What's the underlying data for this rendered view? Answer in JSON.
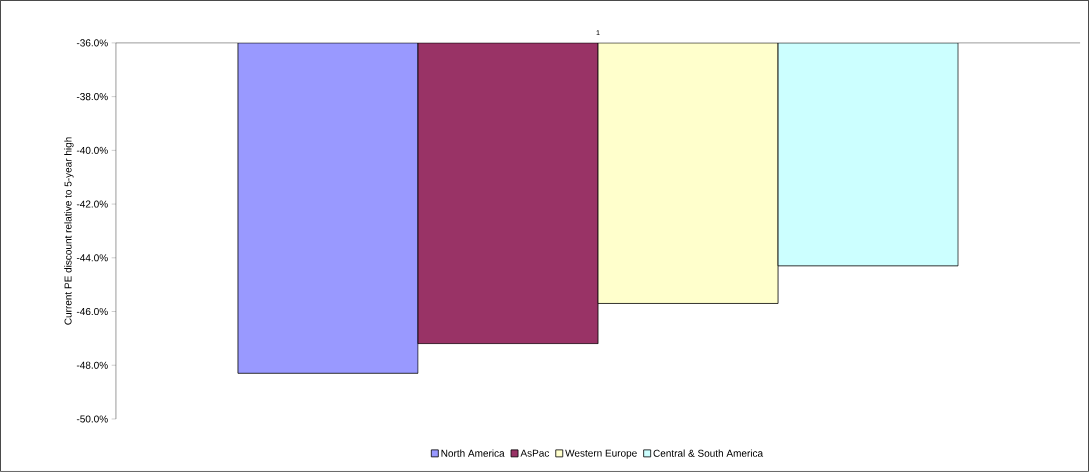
{
  "chart_data": {
    "type": "bar",
    "ylabel": "Current PE discount relative to 5-year high",
    "categories": [
      "1"
    ],
    "series": [
      {
        "name": "North America",
        "color": "#9999ff",
        "values": [
          -48.3
        ]
      },
      {
        "name": "AsPac",
        "color": "#993366",
        "values": [
          -47.2
        ]
      },
      {
        "name": "Western Europe",
        "color": "#ffffcc",
        "values": [
          -45.7
        ]
      },
      {
        "name": "Central & South America",
        "color": "#ccffff",
        "values": [
          -44.3
        ]
      }
    ],
    "ylim": [
      -50,
      -36
    ],
    "yticks": [
      {
        "value": -50,
        "label": "-50.0%"
      },
      {
        "value": -48,
        "label": "-48.0%"
      },
      {
        "value": -46,
        "label": "-46.0%"
      },
      {
        "value": -44,
        "label": "-44.0%"
      },
      {
        "value": -42,
        "label": "-42.0%"
      },
      {
        "value": -40,
        "label": "-40.0%"
      },
      {
        "value": -38,
        "label": "-38.0%"
      },
      {
        "value": -36,
        "label": "-36.0%"
      }
    ],
    "legend": "bottom",
    "grid": false
  }
}
